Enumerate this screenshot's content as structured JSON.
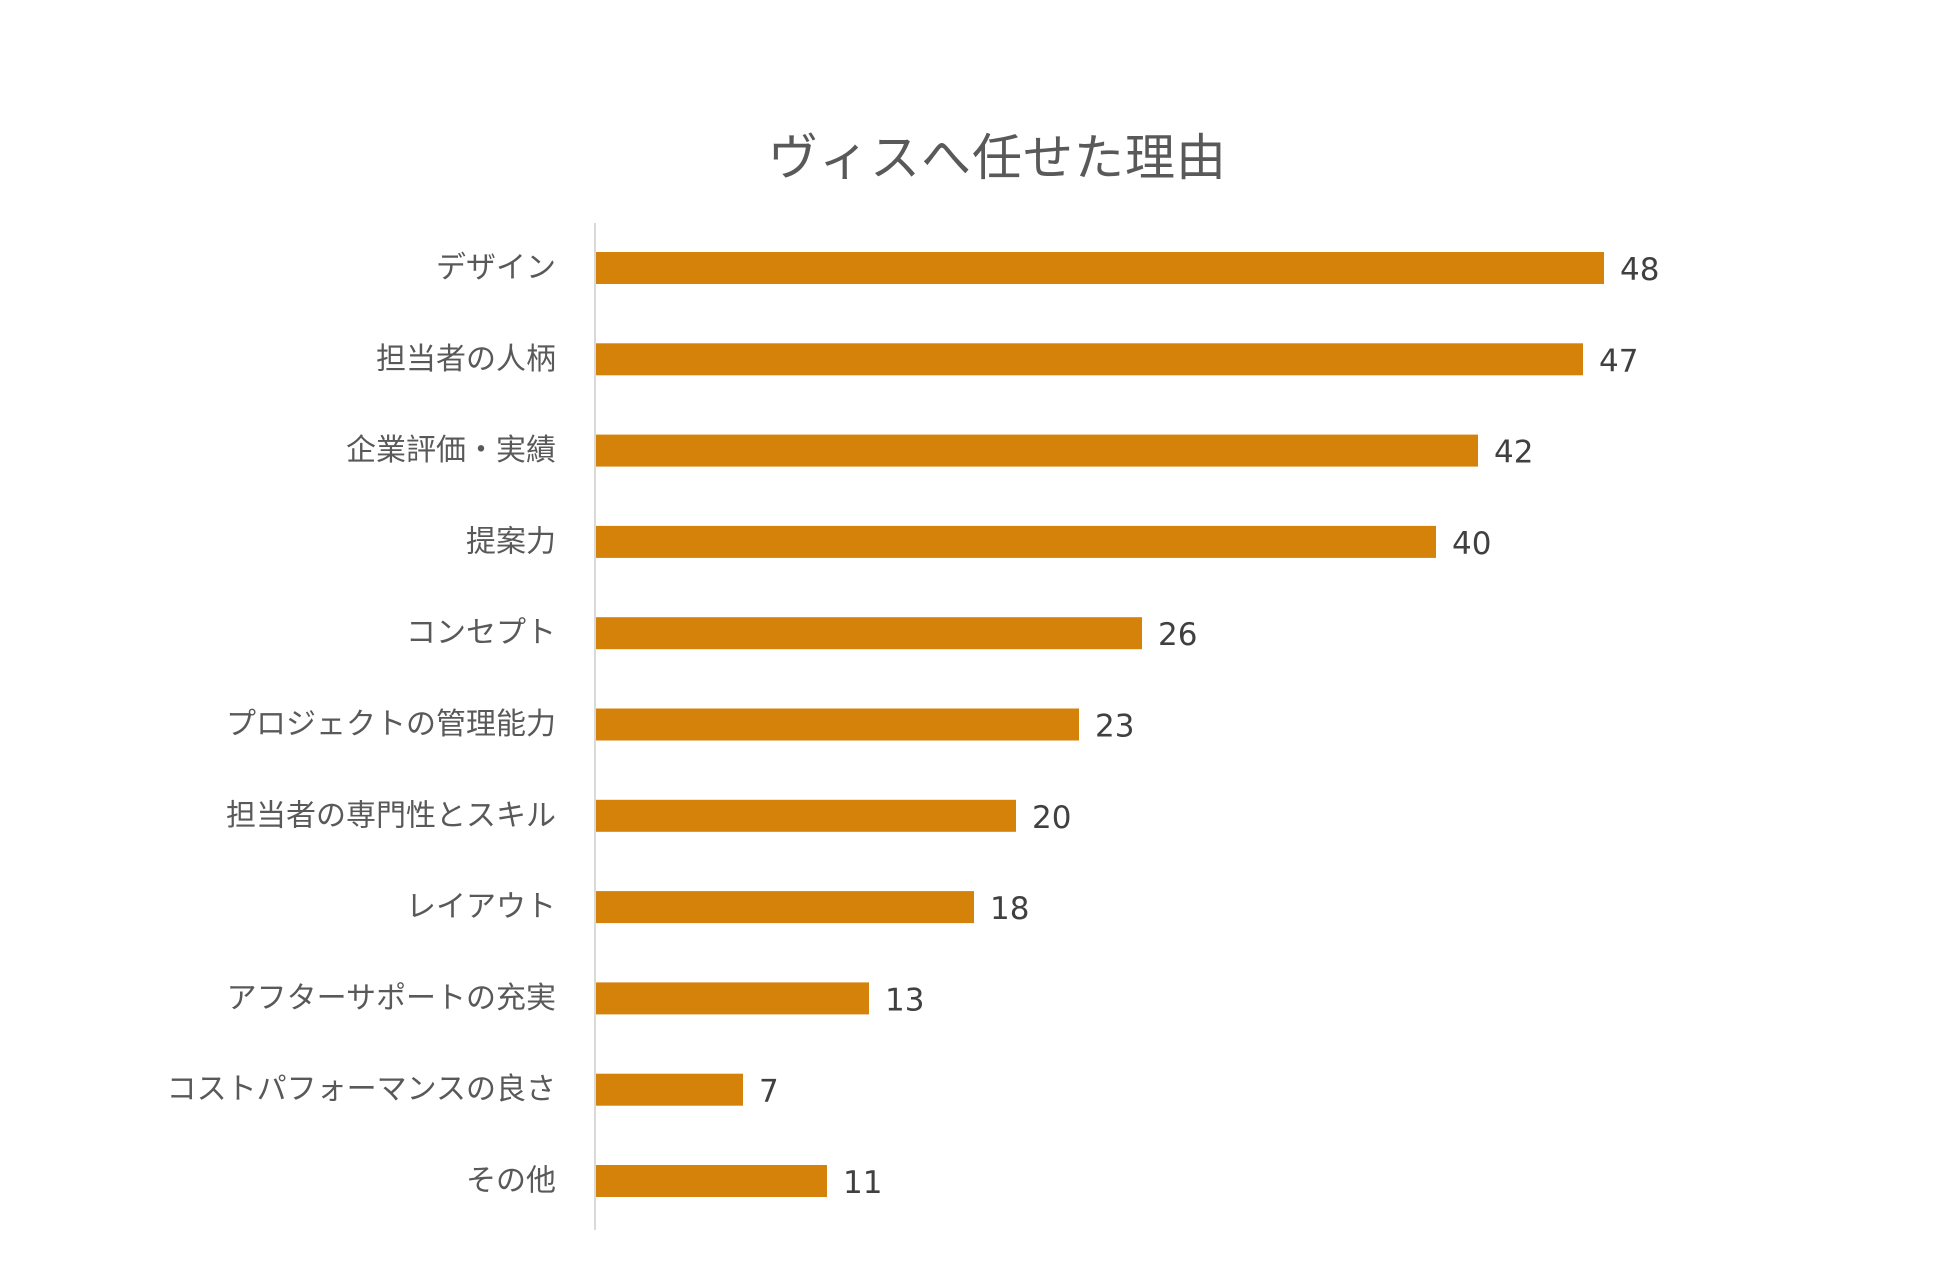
{
  "chart_data": {
    "type": "bar",
    "orientation": "horizontal",
    "title": "ヴィスへ任せた理由",
    "categories": [
      "デザイン",
      "担当者の人柄",
      "企業評価・実績",
      "提案力",
      "コンセプト",
      "プロジェクトの管理能力",
      "担当者の専門性とスキル",
      "レイアウト",
      "アフターサポートの充実",
      "コストパフォーマンスの良さ",
      "その他"
    ],
    "values": [
      48,
      47,
      42,
      40,
      26,
      23,
      20,
      18,
      13,
      7,
      11
    ],
    "xlim": [
      0,
      48
    ],
    "grid": false,
    "legend": "none",
    "data_labels": true,
    "colors": {
      "bar": "#D4820A",
      "axis": "#d9d9d9",
      "category_text": "#595959",
      "value_text": "#404040"
    }
  }
}
